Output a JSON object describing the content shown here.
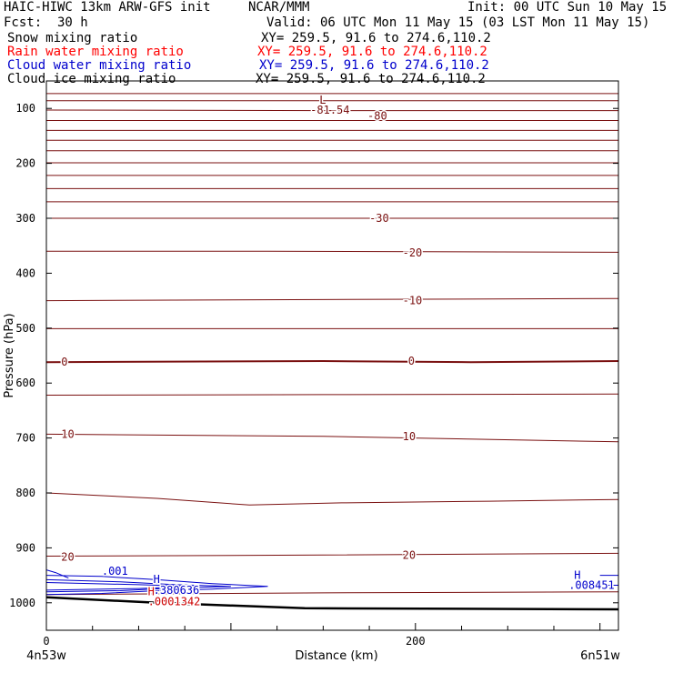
{
  "header": {
    "model": "HAIC-HIWC 13km ARW-GFS init",
    "org": "NCAR/MMM",
    "init": "Init: 00 UTC Sun 10 May 15",
    "fcst_label": "Fcst:",
    "fcst_value": "30 h",
    "valid": "Valid: 06 UTC Mon 11 May 15 (03 LST Mon 11 May 15)",
    "fields": [
      {
        "name": "Snow mixing ratio",
        "xy": "XY= 259.5, 91.6 to 274.6,110.2",
        "color": "#000000"
      },
      {
        "name": "Rain water mixing ratio",
        "xy": "XY= 259.5, 91.6 to 274.6,110.2",
        "color": "#ff0000"
      },
      {
        "name": "Cloud water mixing ratio",
        "xy": "XY= 259.5, 91.6 to 274.6,110.2",
        "color": "#0000cc"
      },
      {
        "name": "Cloud ice mixing ratio",
        "xy": "XY= 259.5, 91.6 to 274.6,110.2",
        "color": "#000000"
      }
    ]
  },
  "chart_data": {
    "type": "line",
    "ylabel": "Pressure (hPa)",
    "xlabel": "Distance (km)",
    "left_label": "4n53w",
    "right_label": "6n51w",
    "xlim": [
      0,
      310
    ],
    "ylim": [
      50,
      1050
    ],
    "x_ticks": [
      0,
      200
    ],
    "y_ticks": [
      100,
      200,
      300,
      400,
      500,
      600,
      700,
      800,
      900,
      1000
    ],
    "temperature_color": "#7a1010",
    "cloud_color": "#0000cc",
    "rain_color": "#cc0000",
    "ground_color": "#000000",
    "isotherms": [
      {
        "label": "",
        "points": [
          [
            0,
            73
          ],
          [
            310,
            73
          ]
        ]
      },
      {
        "label": "",
        "points": [
          [
            0,
            86
          ],
          [
            310,
            86
          ]
        ]
      },
      {
        "label": "-80",
        "points": [
          [
            0,
            103
          ],
          [
            150,
            104
          ],
          [
            310,
            104
          ]
        ]
      },
      {
        "label": "",
        "points": [
          [
            0,
            122
          ],
          [
            310,
            122
          ]
        ]
      },
      {
        "label": "",
        "points": [
          [
            0,
            140
          ],
          [
            310,
            140
          ]
        ]
      },
      {
        "label": "",
        "points": [
          [
            0,
            158
          ],
          [
            310,
            158
          ]
        ]
      },
      {
        "label": "",
        "points": [
          [
            0,
            177
          ],
          [
            310,
            177
          ]
        ]
      },
      {
        "label": "",
        "points": [
          [
            0,
            199
          ],
          [
            310,
            199
          ]
        ]
      },
      {
        "label": "",
        "points": [
          [
            0,
            222
          ],
          [
            310,
            222
          ]
        ]
      },
      {
        "label": "",
        "points": [
          [
            0,
            246
          ],
          [
            310,
            246
          ]
        ]
      },
      {
        "label": "",
        "points": [
          [
            0,
            270
          ],
          [
            310,
            270
          ]
        ]
      },
      {
        "label": "-30",
        "points": [
          [
            0,
            300
          ],
          [
            310,
            300
          ]
        ]
      },
      {
        "label": "-20",
        "points": [
          [
            0,
            360
          ],
          [
            120,
            360
          ],
          [
            310,
            362
          ]
        ]
      },
      {
        "label": "-10",
        "points": [
          [
            0,
            450
          ],
          [
            150,
            448
          ],
          [
            310,
            446
          ]
        ]
      },
      {
        "label": "",
        "points": [
          [
            0,
            501
          ],
          [
            310,
            501
          ]
        ]
      },
      {
        "label": "0",
        "points": [
          [
            0,
            562
          ],
          [
            150,
            560
          ],
          [
            230,
            562
          ],
          [
            310,
            560
          ]
        ]
      },
      {
        "label": "",
        "points": [
          [
            0,
            622
          ],
          [
            150,
            621
          ],
          [
            310,
            620
          ]
        ]
      },
      {
        "label": "10",
        "points": [
          [
            0,
            693
          ],
          [
            150,
            697
          ],
          [
            310,
            707
          ]
        ]
      },
      {
        "label": "",
        "points": [
          [
            0,
            800
          ],
          [
            60,
            810
          ],
          [
            110,
            822
          ],
          [
            160,
            818
          ],
          [
            240,
            815
          ],
          [
            310,
            812
          ]
        ]
      },
      {
        "label": "20",
        "points": [
          [
            0,
            915
          ],
          [
            150,
            913
          ],
          [
            310,
            910
          ]
        ]
      },
      {
        "label": "",
        "points": [
          [
            0,
            985
          ],
          [
            150,
            982
          ],
          [
            310,
            980
          ]
        ]
      }
    ],
    "cloud_water": [
      {
        "points": [
          [
            0,
            950
          ],
          [
            30,
            952
          ],
          [
            60,
            958
          ],
          [
            90,
            965
          ],
          [
            120,
            970
          ],
          [
            90,
            975
          ],
          [
            60,
            978
          ],
          [
            30,
            983
          ],
          [
            0,
            985
          ]
        ]
      },
      {
        "points": [
          [
            0,
            958
          ],
          [
            40,
            962
          ],
          [
            70,
            967
          ],
          [
            100,
            970
          ],
          [
            70,
            973
          ],
          [
            40,
            978
          ],
          [
            0,
            980
          ]
        ]
      },
      {
        "points": [
          [
            0,
            963
          ],
          [
            50,
            967
          ],
          [
            80,
            970
          ],
          [
            50,
            974
          ],
          [
            0,
            977
          ]
        ]
      },
      {
        "points": [
          [
            0,
            940
          ],
          [
            5,
            945
          ],
          [
            12,
            955
          ]
        ]
      },
      {
        "points": [
          [
            300,
            950
          ],
          [
            310,
            950
          ]
        ]
      },
      {
        "points": [
          [
            300,
            968
          ],
          [
            310,
            968
          ]
        ]
      }
    ],
    "ground": [
      [
        0,
        990
      ],
      [
        60,
        1000
      ],
      [
        140,
        1010
      ],
      [
        310,
        1012
      ]
    ],
    "annotations": [
      {
        "text": "L",
        "x": 148,
        "y": 85,
        "color": "#7a1010"
      },
      {
        "text": "-81.54",
        "x": 143,
        "y": 103,
        "color": "#7a1010"
      },
      {
        "text": "-80",
        "x": 174,
        "y": 114,
        "color": "#7a1010"
      },
      {
        "text": "-30",
        "x": 175,
        "y": 300,
        "color": "#7a1010"
      },
      {
        "text": "-20",
        "x": 193,
        "y": 363,
        "color": "#7a1010"
      },
      {
        "text": "-10",
        "x": 193,
        "y": 450,
        "color": "#7a1010"
      },
      {
        "text": "0",
        "x": 196,
        "y": 560,
        "color": "#7a1010"
      },
      {
        "text": "0",
        "x": 8,
        "y": 562,
        "color": "#7a1010"
      },
      {
        "text": "10",
        "x": 193,
        "y": 697,
        "color": "#7a1010"
      },
      {
        "text": "10",
        "x": 8,
        "y": 693,
        "color": "#7a1010"
      },
      {
        "text": "20",
        "x": 193,
        "y": 913,
        "color": "#7a1010"
      },
      {
        "text": "20",
        "x": 8,
        "y": 917,
        "color": "#7a1010"
      },
      {
        "text": ".001",
        "x": 30,
        "y": 942,
        "color": "#0000cc"
      },
      {
        "text": "H",
        "x": 58,
        "y": 957,
        "color": "#0000cc"
      },
      {
        "text": ".380636",
        "x": 58,
        "y": 977,
        "color": "#0000cc"
      },
      {
        "text": "H",
        "x": 55,
        "y": 980,
        "color": "#cc0000"
      },
      {
        "text": ".0001342",
        "x": 55,
        "y": 998,
        "color": "#cc0000"
      },
      {
        "text": "H",
        "x": 286,
        "y": 950,
        "color": "#0000cc"
      },
      {
        "text": ".008451",
        "x": 283,
        "y": 968,
        "color": "#0000cc"
      }
    ]
  }
}
